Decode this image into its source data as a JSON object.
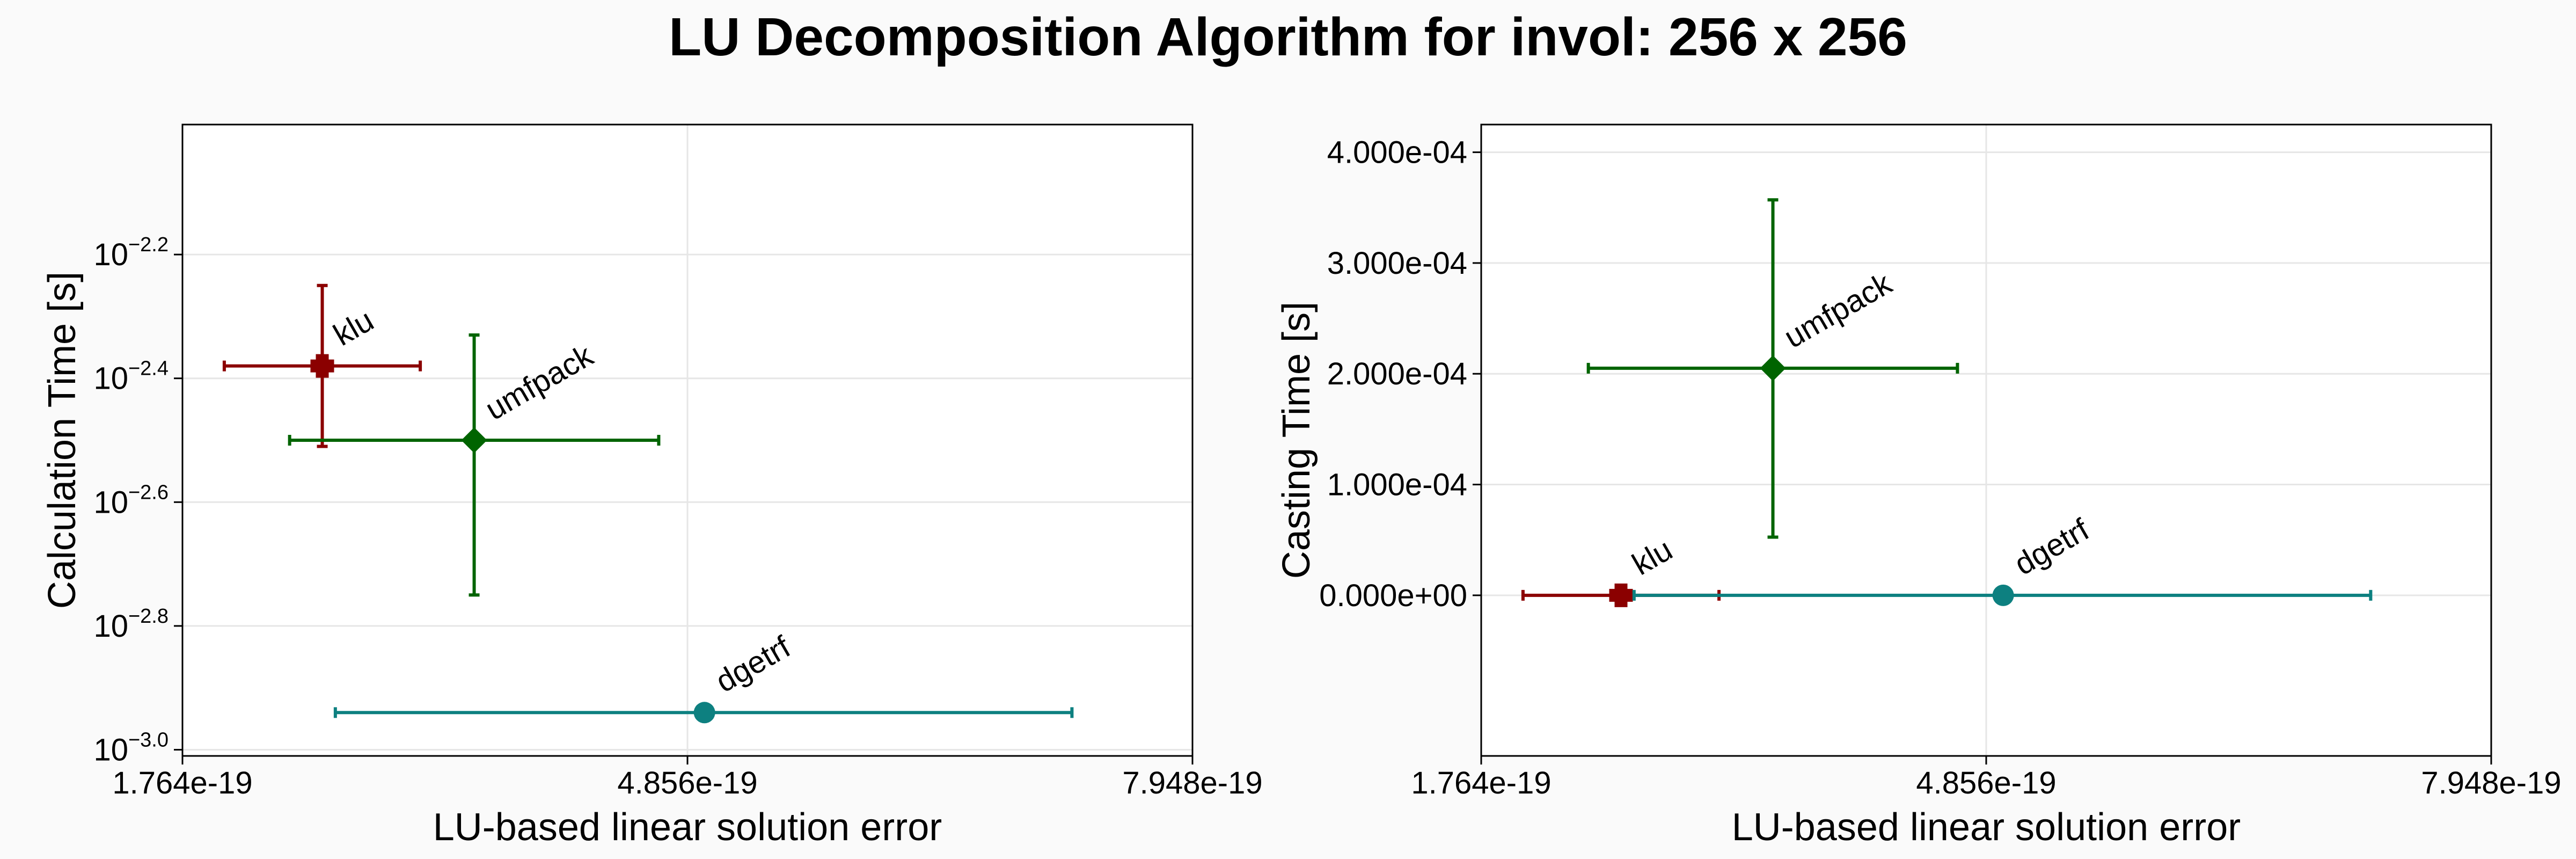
{
  "title": "LU Decomposition Algorithm for invol: 256 x 256",
  "colors": {
    "klu": "#8b0000",
    "umfpack": "#006400",
    "dgetrf": "#0d8080",
    "grid": "#e6e6e6",
    "background": "#fafafa"
  },
  "chart_data": [
    {
      "type": "scatter",
      "xlabel": "LU-based linear solution error",
      "ylabel": "Calculation Time [s]",
      "yscale": "log",
      "xlim": [
        1.764e-19,
        7.948e-19
      ],
      "xticks": [
        "1.764e-19",
        "4.856e-19",
        "7.948e-19"
      ],
      "ylim_log10": [
        -3.01,
        -1.99
      ],
      "yticks": [
        {
          "base": "10",
          "exp": "−2.2",
          "log10": -2.2
        },
        {
          "base": "10",
          "exp": "−2.4",
          "log10": -2.4
        },
        {
          "base": "10",
          "exp": "−2.6",
          "log10": -2.6
        },
        {
          "base": "10",
          "exp": "−2.8",
          "log10": -2.8
        },
        {
          "base": "10",
          "exp": "−3.0",
          "log10": -3.0
        }
      ],
      "grid": true,
      "series": [
        {
          "name": "klu",
          "marker": "cross",
          "color": "klu",
          "x": 2.62e-19,
          "x_err": [
            2.02e-19,
            3.22e-19
          ],
          "y_log10": -2.38,
          "y_err_log10": [
            -2.51,
            -2.25
          ]
        },
        {
          "name": "umfpack",
          "marker": "diamond",
          "color": "umfpack",
          "x": 3.55e-19,
          "x_err": [
            2.42e-19,
            4.68e-19
          ],
          "y_log10": -2.5,
          "y_err_log10": [
            -2.75,
            -2.33
          ]
        },
        {
          "name": "dgetrf",
          "marker": "circle",
          "color": "dgetrf",
          "x": 4.96e-19,
          "x_err": [
            2.7e-19,
            7.21e-19
          ],
          "y_log10": -2.94,
          "y_err_log10": null
        }
      ]
    },
    {
      "type": "scatter",
      "xlabel": "LU-based linear solution error",
      "ylabel": "Casting Time [s]",
      "yscale": "linear",
      "xlim": [
        1.764e-19,
        7.948e-19
      ],
      "xticks": [
        "1.764e-19",
        "4.856e-19",
        "7.948e-19"
      ],
      "ylim": [
        -0.000145,
        0.000425
      ],
      "yticks": [
        {
          "label": "4.000e-04",
          "value": 0.0004
        },
        {
          "label": "3.000e-04",
          "value": 0.0003
        },
        {
          "label": "2.000e-04",
          "value": 0.0002
        },
        {
          "label": "1.000e-04",
          "value": 0.0001
        },
        {
          "label": "0.000e+00",
          "value": 0.0
        }
      ],
      "grid": true,
      "series": [
        {
          "name": "klu",
          "marker": "cross",
          "color": "klu",
          "x": 2.62e-19,
          "x_err": [
            2.02e-19,
            3.22e-19
          ],
          "y": 0.0,
          "y_err": null
        },
        {
          "name": "umfpack",
          "marker": "diamond",
          "color": "umfpack",
          "x": 3.55e-19,
          "x_err": [
            2.42e-19,
            4.68e-19
          ],
          "y": 0.000205,
          "y_err": [
            5.25e-05,
            0.000357
          ]
        },
        {
          "name": "dgetrf",
          "marker": "circle",
          "color": "dgetrf",
          "x": 4.96e-19,
          "x_err": [
            2.7e-19,
            7.21e-19
          ],
          "y": 0.0,
          "y_err": null
        }
      ]
    }
  ]
}
